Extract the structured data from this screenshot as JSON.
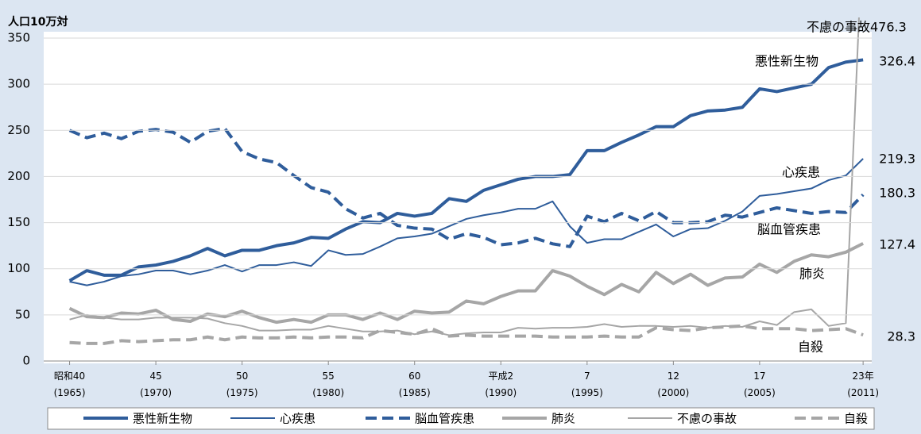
{
  "chart_data": {
    "type": "line",
    "y_axis_label": "人口10万対",
    "x": [
      1965,
      1966,
      1967,
      1968,
      1969,
      1970,
      1971,
      1972,
      1973,
      1974,
      1975,
      1976,
      1977,
      1978,
      1979,
      1980,
      1981,
      1982,
      1983,
      1984,
      1985,
      1986,
      1987,
      1988,
      1989,
      1990,
      1991,
      1992,
      1993,
      1994,
      1995,
      1996,
      1997,
      1998,
      1999,
      2000,
      2001,
      2002,
      2003,
      2004,
      2005,
      2006,
      2007,
      2008,
      2009,
      2010,
      2011
    ],
    "xlim": [
      1963.5,
      2011.5
    ],
    "xticks": [
      {
        "value": 1965,
        "label": "昭和40\n(1965)"
      },
      {
        "value": 1970,
        "label": "45\n(1970)"
      },
      {
        "value": 1975,
        "label": "50\n(1975)"
      },
      {
        "value": 1980,
        "label": "55\n(1980)"
      },
      {
        "value": 1985,
        "label": "60\n(1985)"
      },
      {
        "value": 1990,
        "label": "平成2\n(1990)"
      },
      {
        "value": 1995,
        "label": "7\n(1995)"
      },
      {
        "value": 2000,
        "label": "12\n(2000)"
      },
      {
        "value": 2005,
        "label": "17\n(2005)"
      },
      {
        "value": 2011,
        "label": "23年\n(2011)"
      }
    ],
    "ylim": [
      0,
      350
    ],
    "yticks": [
      0,
      50,
      100,
      150,
      200,
      250,
      300,
      350
    ],
    "grid": true,
    "legend": "bottom",
    "series": [
      {
        "name": "悪性新生物",
        "color": "#2f5d9b",
        "width": 4,
        "dashed": false,
        "values": [
          87,
          98,
          93,
          93,
          102,
          104,
          108,
          114,
          122,
          114,
          120,
          120,
          125,
          128,
          134,
          133,
          143,
          151,
          150,
          160,
          157,
          160,
          176,
          173,
          185,
          191,
          197,
          200,
          200,
          202,
          228,
          228,
          237,
          245,
          254,
          254,
          266,
          271,
          272,
          275,
          295,
          292,
          296,
          300,
          318,
          324,
          326.4
        ]
      },
      {
        "name": "心疾患",
        "color": "#2f5d9b",
        "width": 2,
        "dashed": false,
        "values": [
          86,
          82,
          86,
          92,
          94,
          98,
          98,
          94,
          98,
          104,
          97,
          104,
          104,
          107,
          103,
          120,
          115,
          116,
          124,
          133,
          135,
          138,
          146,
          154,
          158,
          161,
          165,
          165,
          173,
          146,
          128,
          132,
          132,
          140,
          148,
          135,
          143,
          144,
          152,
          162,
          179,
          181,
          184,
          187,
          196,
          201,
          219.3
        ]
      },
      {
        "name": "脳血管疾患",
        "color": "#2f5d9b",
        "width": 4,
        "dashed": true,
        "values": [
          250,
          242,
          247,
          241,
          249,
          251,
          248,
          237,
          249,
          252,
          227,
          219,
          215,
          201,
          188,
          183,
          165,
          155,
          160,
          147,
          144,
          143,
          132,
          138,
          134,
          126,
          128,
          133,
          127,
          124,
          157,
          151,
          160,
          152,
          162,
          150,
          150,
          151,
          158,
          156,
          161,
          166,
          163,
          160,
          162,
          161,
          180.3
        ]
      },
      {
        "name": "肺炎",
        "color": "#a6a6a6",
        "width": 4,
        "dashed": false,
        "values": [
          57,
          48,
          47,
          52,
          51,
          55,
          45,
          43,
          51,
          48,
          54,
          47,
          42,
          45,
          42,
          50,
          50,
          45,
          52,
          45,
          54,
          52,
          53,
          65,
          62,
          70,
          76,
          76,
          98,
          92,
          81,
          72,
          83,
          75,
          96,
          84,
          94,
          82,
          90,
          91,
          105,
          96,
          108,
          115,
          113,
          118,
          127.4
        ]
      },
      {
        "name": "不慮の事故",
        "color": "#a6a6a6",
        "width": 2,
        "dashed": false,
        "values": [
          45,
          50,
          47,
          45,
          45,
          47,
          47,
          47,
          46,
          41,
          38,
          33,
          33,
          34,
          34,
          38,
          35,
          32,
          32,
          33,
          29,
          32,
          28,
          30,
          31,
          31,
          36,
          35,
          36,
          36,
          37,
          40,
          37,
          38,
          38,
          37,
          38,
          36,
          38,
          37,
          43,
          39,
          53,
          56,
          38,
          41,
          476.3
        ]
      },
      {
        "name": "自殺",
        "color": "#a6a6a6",
        "width": 4,
        "dashed": true,
        "values": [
          20,
          19,
          19,
          22,
          21,
          22,
          23,
          23,
          26,
          23,
          26,
          25,
          25,
          26,
          25,
          26,
          26,
          25,
          33,
          31,
          29,
          35,
          27,
          28,
          27,
          27,
          27,
          27,
          26,
          26,
          26,
          27,
          26,
          26,
          36,
          34,
          33,
          36,
          37,
          38,
          35,
          35,
          35,
          33,
          34,
          35,
          28.3
        ]
      }
    ]
  }
}
